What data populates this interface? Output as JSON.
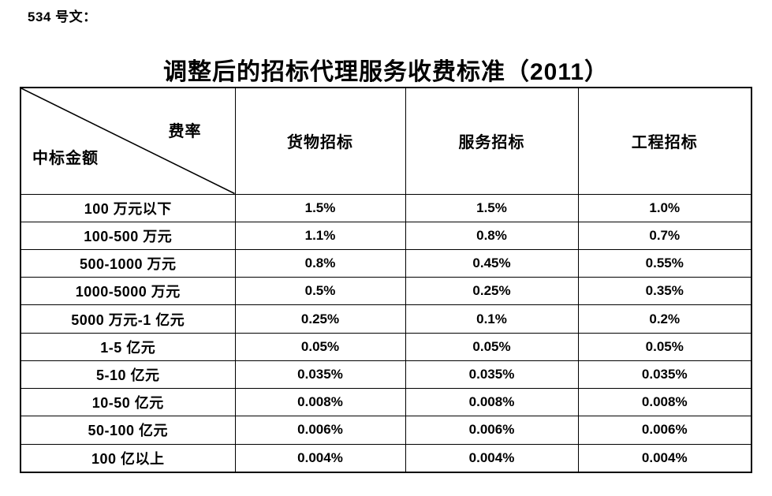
{
  "page": {
    "doc_label": "534 号文：",
    "title": "调整后的招标代理服务收费标准（2011）"
  },
  "table": {
    "corner": {
      "top_right": "费率",
      "bottom_left": "中标金额"
    },
    "columns": [
      "货物招标",
      "服务招标",
      "工程招标"
    ],
    "rows": [
      {
        "label": "100 万元以下",
        "values": [
          "1.5%",
          "1.5%",
          "1.0%"
        ]
      },
      {
        "label": "100-500 万元",
        "values": [
          "1.1%",
          "0.8%",
          "0.7%"
        ]
      },
      {
        "label": "500-1000 万元",
        "values": [
          "0.8%",
          "0.45%",
          "0.55%"
        ]
      },
      {
        "label": "1000-5000 万元",
        "values": [
          "0.5%",
          "0.25%",
          "0.35%"
        ]
      },
      {
        "label": "5000 万元-1 亿元",
        "values": [
          "0.25%",
          "0.1%",
          "0.2%"
        ]
      },
      {
        "label": "1-5 亿元",
        "values": [
          "0.05%",
          "0.05%",
          "0.05%"
        ]
      },
      {
        "label": "5-10 亿元",
        "values": [
          "0.035%",
          "0.035%",
          "0.035%"
        ]
      },
      {
        "label": "10-50 亿元",
        "values": [
          "0.008%",
          "0.008%",
          "0.008%"
        ]
      },
      {
        "label": "50-100 亿元",
        "values": [
          "0.006%",
          "0.006%",
          "0.006%"
        ]
      },
      {
        "label": "100 亿以上",
        "values": [
          "0.004%",
          "0.004%",
          "0.004%"
        ]
      }
    ]
  },
  "colors": {
    "background": "#ffffff",
    "text": "#000000",
    "border": "#000000"
  }
}
